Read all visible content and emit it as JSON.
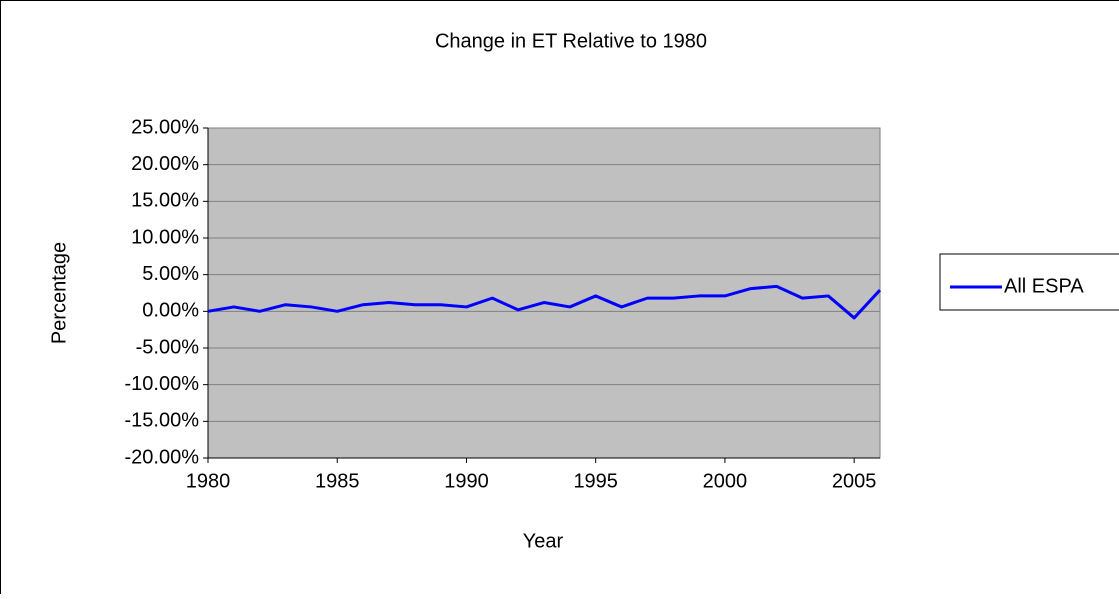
{
  "chart_data": {
    "type": "line",
    "title": "Change in ET Relative to 1980",
    "x_label": "Year",
    "y_label": "Percentage",
    "x": [
      1980,
      1981,
      1982,
      1983,
      1984,
      1985,
      1986,
      1987,
      1988,
      1989,
      1990,
      1991,
      1992,
      1993,
      1994,
      1995,
      1996,
      1997,
      1998,
      1999,
      2000,
      2001,
      2002,
      2003,
      2004,
      2005,
      2006
    ],
    "series": [
      {
        "name": "All ESPA",
        "color": "#0000ff",
        "values": [
          0,
          0.6,
          0,
          0.9,
          0.6,
          0,
          0.9,
          1.2,
          0.9,
          0.9,
          0.6,
          1.8,
          0.2,
          1.2,
          0.6,
          2.1,
          0.6,
          1.8,
          1.8,
          2.1,
          2.1,
          3.1,
          3.4,
          1.8,
          2.1,
          -0.9,
          2.9
        ]
      }
    ],
    "xlim": [
      1980,
      2006
    ],
    "xticks": [
      1980,
      1985,
      1990,
      1995,
      2000,
      2005
    ],
    "ylim": [
      -20,
      25
    ],
    "yticks": [
      {
        "value": -20,
        "label": "-20.00%"
      },
      {
        "value": -15,
        "label": "-15.00%"
      },
      {
        "value": -10,
        "label": "-10.00%"
      },
      {
        "value": -5,
        "label": "-5.00%"
      },
      {
        "value": 0,
        "label": "0.00%"
      },
      {
        "value": 5,
        "label": "5.00%"
      },
      {
        "value": 10,
        "label": "10.00%"
      },
      {
        "value": 15,
        "label": "15.00%"
      },
      {
        "value": 20,
        "label": "20.00%"
      },
      {
        "value": 25,
        "label": "25.00%"
      }
    ],
    "grid": true,
    "legend": "right",
    "plot_background": "#c0c0c0"
  }
}
